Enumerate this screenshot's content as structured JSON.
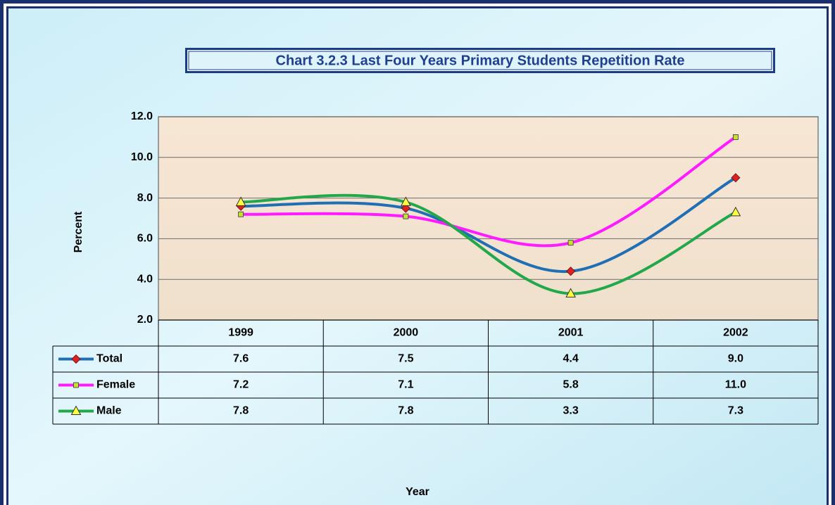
{
  "chart_data": {
    "type": "line",
    "title": "Chart 3.2.3 Last Four Years Primary Students Repetition Rate",
    "x_label": "Year",
    "y_label": "Percent",
    "categories": [
      "1999",
      "2000",
      "2001",
      "2002"
    ],
    "series": [
      {
        "name": "Total",
        "color": "#1f6fb5",
        "marker": "diamond",
        "marker_color": "#e02020",
        "values": [
          7.6,
          7.5,
          4.4,
          9.0
        ],
        "value_labels": [
          "7.6",
          "7.5",
          "4.4",
          "9.0"
        ]
      },
      {
        "name": "Female",
        "color": "#ff1aff",
        "marker": "square",
        "marker_color": "#c8e030",
        "values": [
          7.2,
          7.1,
          5.8,
          11.0
        ],
        "value_labels": [
          "7.2",
          "7.1",
          "5.8",
          "11.0"
        ]
      },
      {
        "name": "Male",
        "color": "#22a84a",
        "marker": "triangle",
        "marker_color": "#ffff40",
        "values": [
          7.8,
          7.8,
          3.3,
          7.3
        ],
        "value_labels": [
          "7.8",
          "7.8",
          "3.3",
          "7.3"
        ]
      }
    ],
    "ylim": [
      2,
      12
    ],
    "yticks": [
      {
        "value": 2,
        "label": "2.0"
      },
      {
        "value": 4,
        "label": "4.0"
      },
      {
        "value": 6,
        "label": "6.0"
      },
      {
        "value": 8,
        "label": "8.0"
      },
      {
        "value": 10,
        "label": "10.0"
      },
      {
        "value": 12,
        "label": "12.0"
      }
    ],
    "grid": true,
    "smooth": true
  }
}
